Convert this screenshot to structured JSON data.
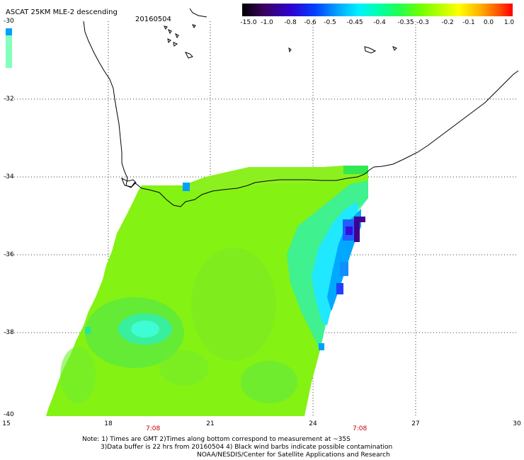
{
  "header": {
    "title": "ASCAT 25KM MLE-2 descending",
    "date": "20160504"
  },
  "colorbar": {
    "labels": [
      "-15.0",
      "-1.0",
      "-0.8",
      "-0.6",
      "-0.5",
      "-0.45",
      "-0.4",
      "-0.35",
      "-0.3",
      "-0.2",
      "-0.1",
      "0.0",
      "1.0"
    ],
    "colors": [
      "#3a0050",
      "#5a00a0",
      "#4000e0",
      "#0040ff",
      "#00a0ff",
      "#00e0ff",
      "#00ffc0",
      "#20ff60",
      "#80ff00",
      "#d0ff00",
      "#ffd000",
      "#ff8000",
      "#ff2000"
    ]
  },
  "axes": {
    "lon_ticks": [
      "15",
      "18",
      "21",
      "24",
      "27",
      "30"
    ],
    "lat_ticks": [
      "-30",
      "-32",
      "-34",
      "-36",
      "-38",
      "-40"
    ]
  },
  "pass_times": [
    "7:08",
    "7:08"
  ],
  "notes": {
    "line1": "Note: 1) Times are GMT 2)Times along bottom correspond to measurement at ~35S",
    "line2": "3)Data buffer is 22 hrs from 20160504 4) Black wind barbs indicate possible contamination",
    "line3": "NOAA/NESDIS/Center for Satellite Applications and Research"
  },
  "colors": {
    "field": "#80ff00",
    "coast": "#000000",
    "grid": "#000000"
  }
}
